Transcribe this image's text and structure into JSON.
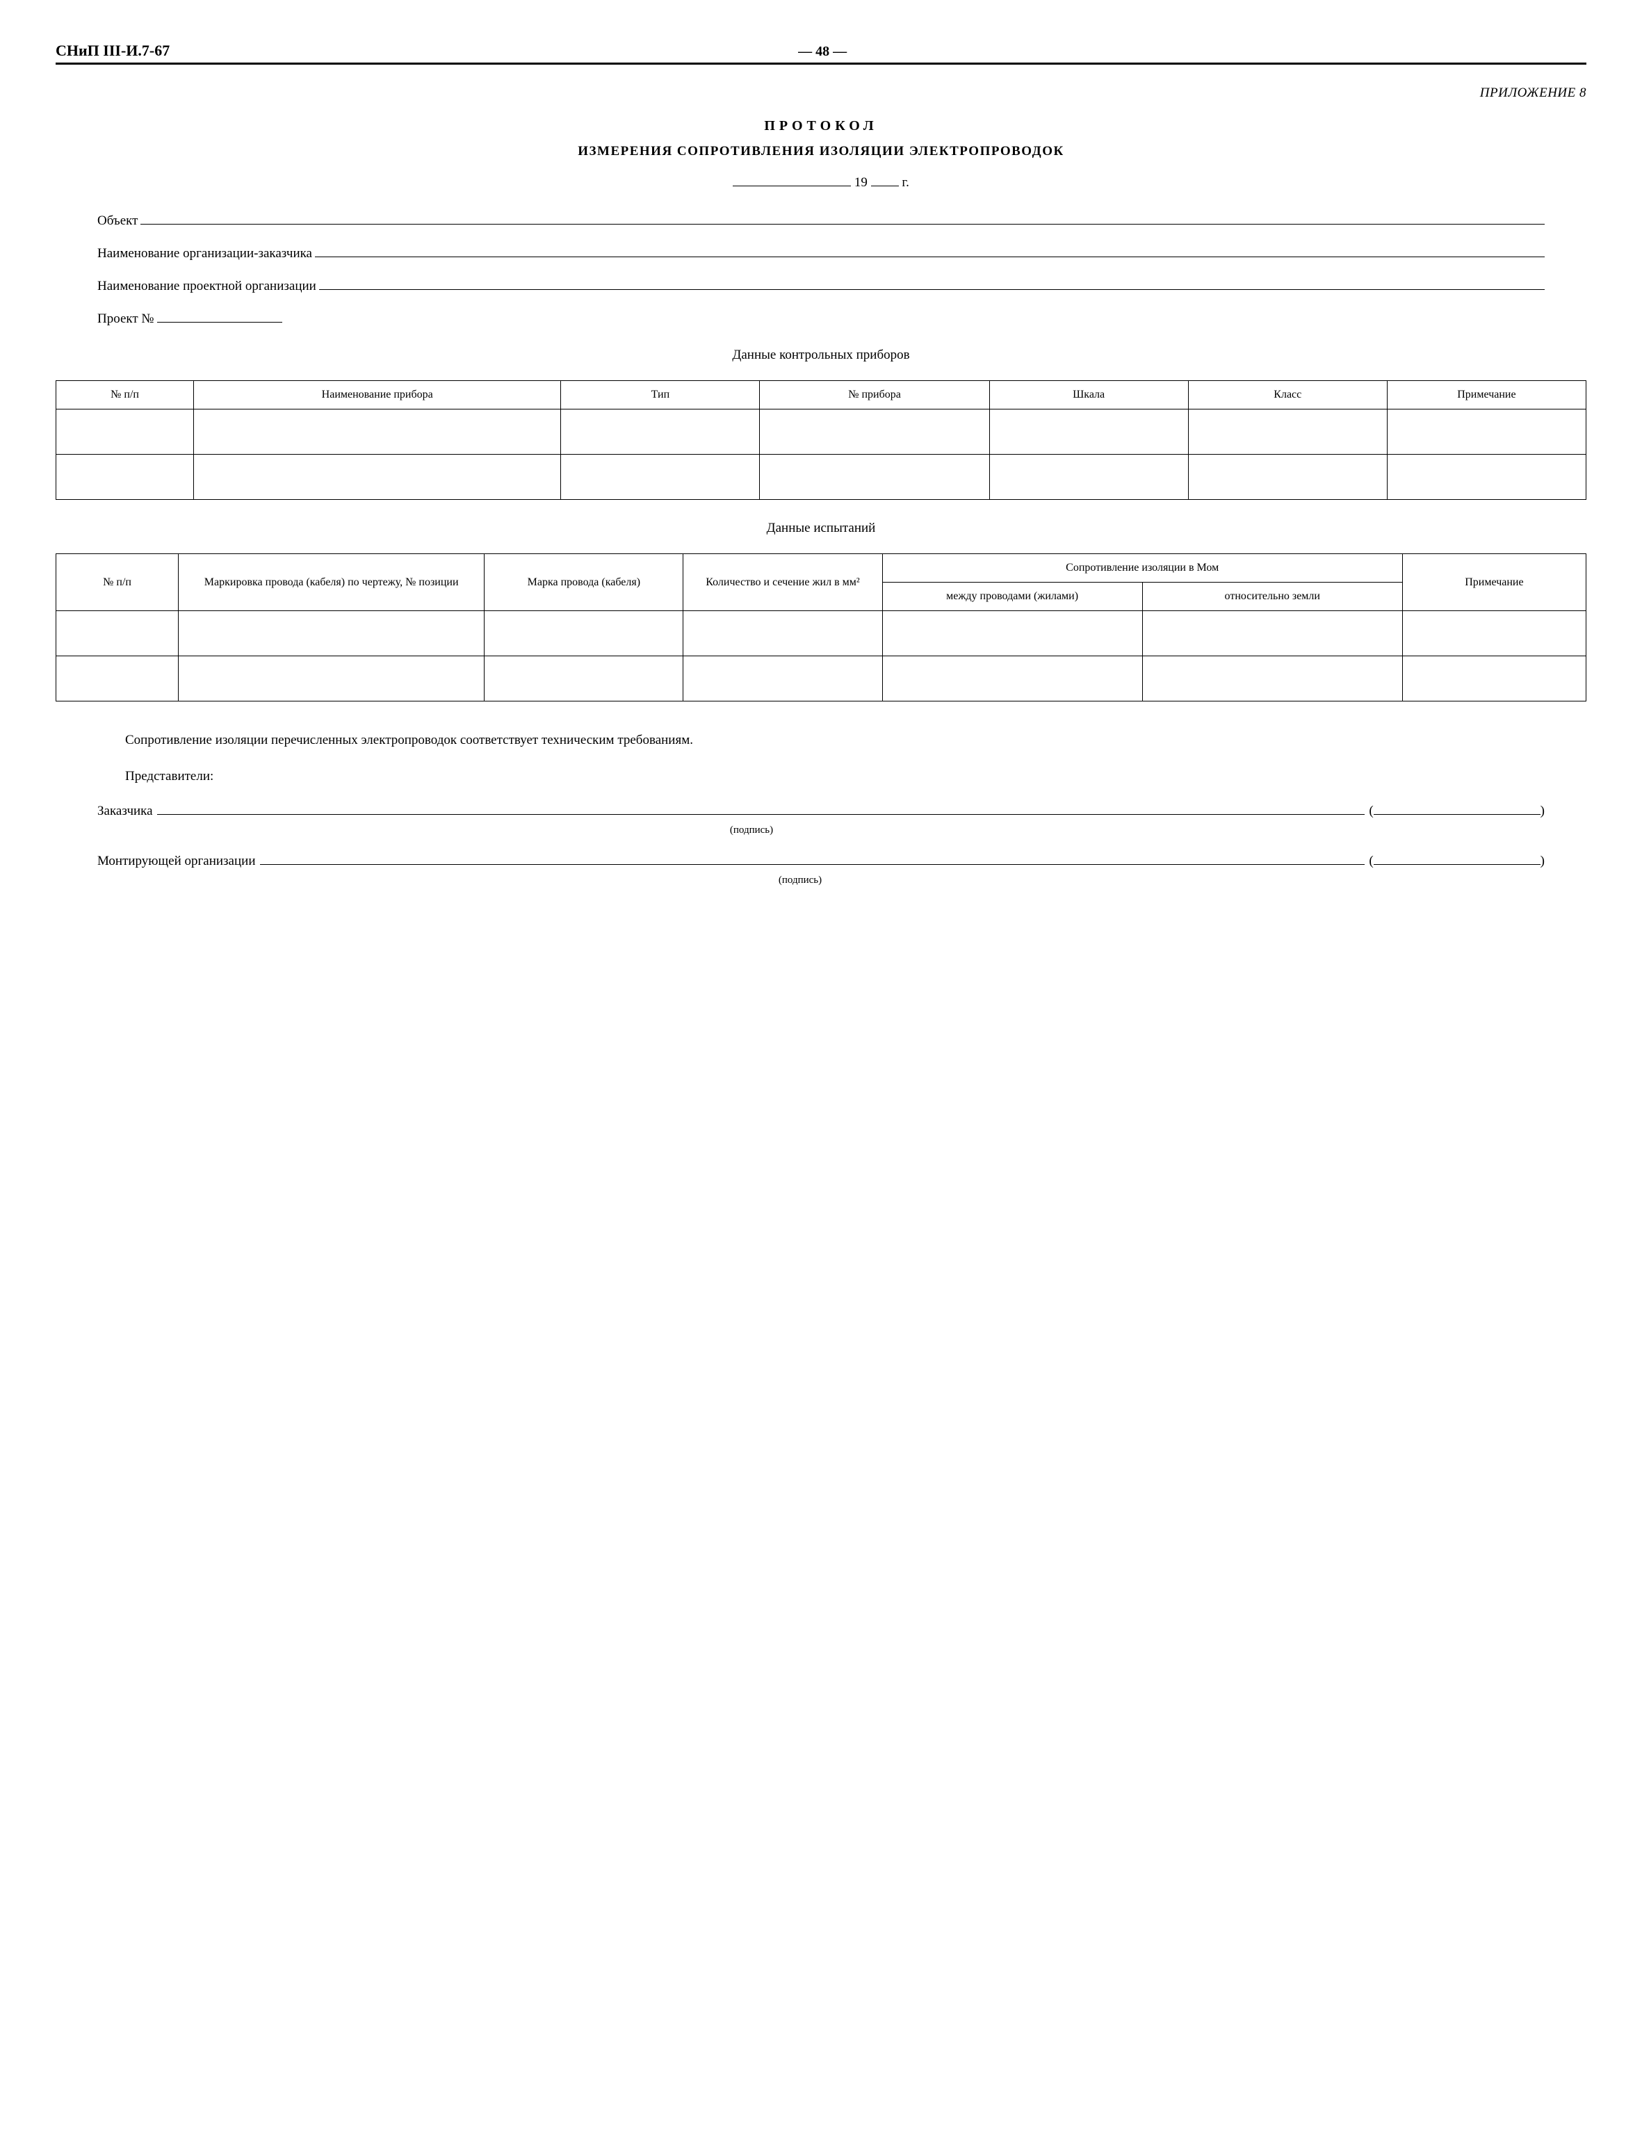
{
  "header": {
    "doc_code": "СНиП III-И.7-67",
    "page_number": "— 48 —"
  },
  "annex": "ПРИЛОЖЕНИЕ 8",
  "title": {
    "line1": "ПРОТОКОЛ",
    "line2": "ИЗМЕРЕНИЯ СОПРОТИВЛЕНИЯ ИЗОЛЯЦИИ ЭЛЕКТРОПРОВОДОК"
  },
  "date": {
    "year_prefix": "19",
    "year_suffix": "г."
  },
  "fields": {
    "object": "Объект",
    "customer_org": "Наименование организации-заказчика",
    "design_org": "Наименование проектной организации",
    "project_no": "Проект №"
  },
  "section1": {
    "heading": "Данные контрольных приборов",
    "columns": [
      "№ п/п",
      "Наименование прибора",
      "Тип",
      "№ прибора",
      "Шкала",
      "Класс",
      "Примечание"
    ],
    "col_widths": [
      "9%",
      "24%",
      "13%",
      "15%",
      "13%",
      "13%",
      "13%"
    ],
    "empty_rows": 2
  },
  "section2": {
    "heading": "Данные испытаний",
    "columns_row1": {
      "c1": "№ п/п",
      "c2": "Маркировка провода (кабеля) по чертежу, № позиции",
      "c3": "Марка провода (кабеля)",
      "c4": "Количество и сечение жил в мм²",
      "c5_group": "Сопротивление изоляции в Мом",
      "c7": "Примечание"
    },
    "columns_row2": {
      "c5": "между проводами (жилами)",
      "c6": "относительно земли"
    },
    "col_widths": [
      "8%",
      "20%",
      "13%",
      "13%",
      "17%",
      "17%",
      "12%"
    ],
    "empty_rows": 2
  },
  "conclusion": "Сопротивление изоляции перечисленных электропроводок соответствует техническим требованиям.",
  "signatures": {
    "reps_label": "Представители:",
    "customer": "Заказчика",
    "installer": "Монтирующей организации",
    "caption": "(подпись)"
  },
  "open_paren": "(",
  "close_paren": ")"
}
